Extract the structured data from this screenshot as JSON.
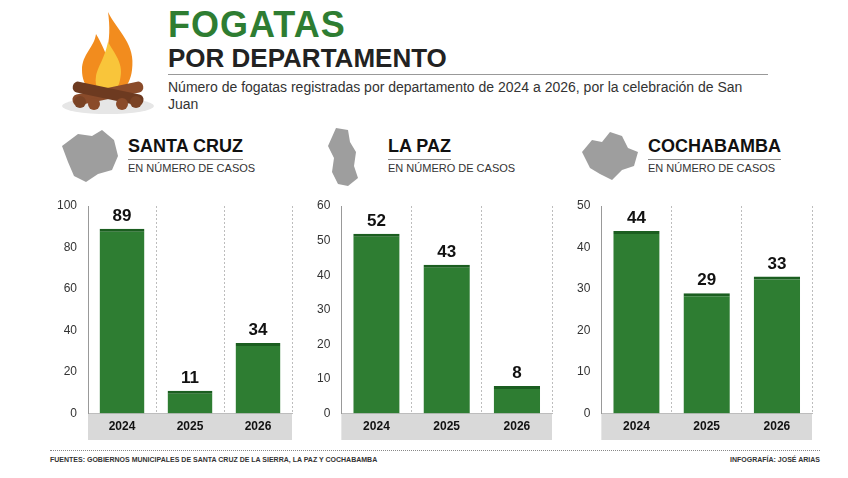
{
  "header": {
    "title": "FOGATAS",
    "title_line2": "POR DEPARTAMENTO",
    "subtitle": "Número de fogatas registradas por departamento de 2024 a 2026, por la celebración de San Juan",
    "source": "FUENTES: GOBIERNOS MUNICIPALES  DE SANTA CRUZ DE LA SIERRA, LA PAZ Y COCHABAMBA",
    "credit": "INFOGRAFÍA: JOSÉ ARIAS"
  },
  "chart_data": [
    {
      "type": "bar",
      "title": "SANTA CRUZ",
      "subtitle": "EN NÚMERO DE CASOS",
      "categories": [
        "2024",
        "2025",
        "2026"
      ],
      "values": [
        89,
        11,
        34
      ],
      "color": "#2e7d32",
      "ylim": [
        0,
        100
      ],
      "yticks": [
        0,
        20,
        40,
        60,
        80,
        100
      ],
      "grid": false,
      "data_labels": true
    },
    {
      "type": "bar",
      "title": "LA PAZ",
      "subtitle": "EN NÚMERO DE CASOS",
      "categories": [
        "2024",
        "2025",
        "2026"
      ],
      "values": [
        52,
        43,
        8
      ],
      "color": "#2e7d32",
      "ylim": [
        0,
        60
      ],
      "yticks": [
        0,
        10,
        20,
        30,
        40,
        50,
        60
      ],
      "grid": false,
      "data_labels": true
    },
    {
      "type": "bar",
      "title": "COCHABAMBA",
      "subtitle": "EN NÚMERO DE CASOS",
      "categories": [
        "2024",
        "2025",
        "2026"
      ],
      "values": [
        44,
        29,
        33
      ],
      "color": "#2e7d32",
      "ylim": [
        0,
        50
      ],
      "yticks": [
        0,
        10,
        20,
        30,
        40,
        50
      ],
      "grid": false,
      "data_labels": true
    }
  ]
}
